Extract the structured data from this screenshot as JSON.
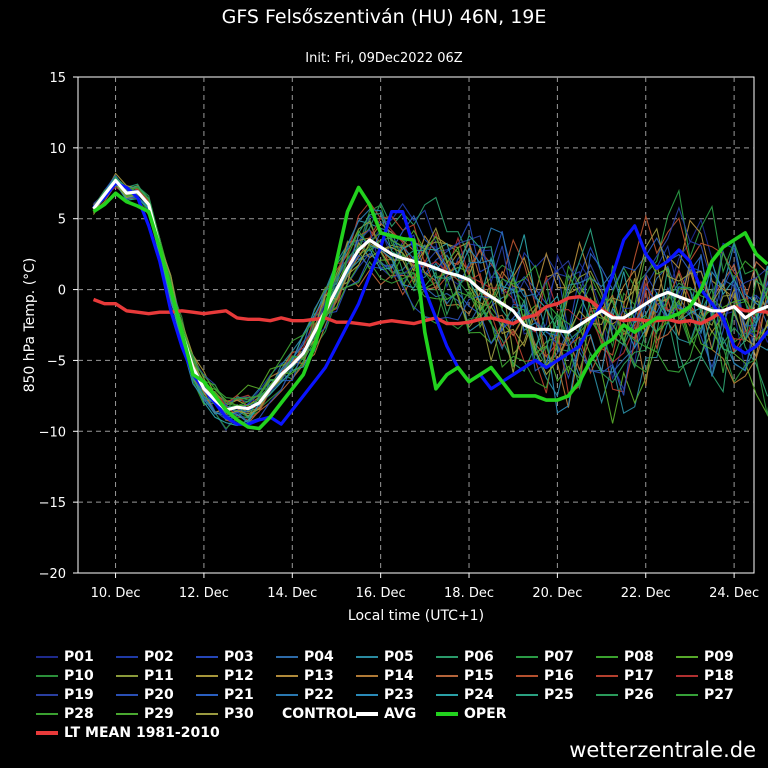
{
  "chart_data": {
    "type": "line",
    "title": "GFS Felsőszentiván (HU) 46N, 19E",
    "subtitle": "Init: Fri, 09Dec2022 06Z",
    "xlabel": "Local time (UTC+1)",
    "ylabel": "850 hPa Temp. (°C)",
    "ylim": [
      -20,
      15
    ],
    "yticks": [
      15,
      10,
      5,
      0,
      -5,
      -10,
      -15,
      -20
    ],
    "ytick_labels": [
      "15",
      "10",
      "5",
      "0",
      "−5",
      "−10",
      "−15",
      "−20"
    ],
    "xlim": [
      -0.35,
      14.95
    ],
    "xticks": [
      0.5,
      2.5,
      4.5,
      6.5,
      8.5,
      10.5,
      12.5,
      14.5
    ],
    "xtick_labels": [
      "10. Dec",
      "12. Dec",
      "14. Dec",
      "16. Dec",
      "18. Dec",
      "20. Dec",
      "22. Dec",
      "24. Dec"
    ],
    "grid": true,
    "legend_placement": "bottom",
    "step_days": 0.25,
    "key_series": [
      {
        "name": "CONTROL",
        "color": "#0a14ff",
        "width": 3.2,
        "values": [
          5.8,
          6.5,
          7.5,
          7.2,
          6.5,
          4.5,
          2,
          -1.5,
          -4,
          -6,
          -7,
          -8,
          -9,
          -9.5,
          -9.5,
          -9.2,
          -9,
          -9.5,
          -8.5,
          -7.5,
          -6.5,
          -5.5,
          -4,
          -2.5,
          -1,
          1,
          3,
          5.5,
          5.5,
          3,
          0,
          -2,
          -4,
          -5.5,
          -6.5,
          -6,
          -7,
          -6.5,
          -6,
          -5.5,
          -5,
          -5.5,
          -5,
          -4.5,
          -4,
          -2.5,
          -1,
          1,
          3.5,
          4.5,
          2.5,
          1.5,
          2,
          2.8,
          2,
          0,
          -1,
          -2,
          -4,
          -4.5,
          -4,
          -3,
          -2.5,
          -2
        ]
      },
      {
        "name": "AVG",
        "color": "#ffffff",
        "width": 3.2,
        "values": [
          5.7,
          6.7,
          7.7,
          6.8,
          6.9,
          6,
          3,
          0,
          -3,
          -5.5,
          -7,
          -7.8,
          -8.5,
          -8.3,
          -8.4,
          -8,
          -7,
          -6,
          -5.3,
          -4.5,
          -3,
          -1.5,
          0,
          1.5,
          2.8,
          3.5,
          3,
          2.5,
          2.2,
          2,
          1.8,
          1.5,
          1.2,
          1,
          0.7,
          0,
          -0.5,
          -1,
          -1.5,
          -2.5,
          -2.8,
          -2.8,
          -2.9,
          -3,
          -2.5,
          -2,
          -1.5,
          -2,
          -2,
          -1.5,
          -1,
          -0.5,
          -0.2,
          -0.5,
          -0.8,
          -1.2,
          -1.5,
          -1.5,
          -1.2,
          -2,
          -1.5,
          -1.2,
          -1.4,
          -1.5,
          -1
        ]
      },
      {
        "name": "OPER",
        "color": "#22d21e",
        "width": 3.6,
        "values": [
          5.5,
          6,
          6.8,
          6.2,
          5.9,
          5.5,
          3,
          0,
          -3,
          -6,
          -6.5,
          -7.5,
          -8.5,
          -9.2,
          -9.7,
          -9.8,
          -9,
          -8,
          -7,
          -6,
          -4,
          -1.5,
          2,
          5.5,
          7.2,
          6,
          4,
          3.8,
          3.6,
          3.5,
          -3,
          -7,
          -6,
          -5.5,
          -6.5,
          -6,
          -5.5,
          -6.5,
          -7.5,
          -7.5,
          -7.5,
          -7.8,
          -7.8,
          -7.5,
          -6.5,
          -5,
          -4,
          -3.5,
          -2.5,
          -3,
          -2.5,
          -2,
          -2,
          -1.7,
          -1.2,
          0,
          2,
          3,
          3.5,
          4,
          2.5,
          1.8
        ]
      },
      {
        "name": "LT MEAN 1981-2010",
        "color": "#e83a3a",
        "width": 3.4,
        "values": [
          -0.7,
          -1,
          -1,
          -1.5,
          -1.6,
          -1.7,
          -1.6,
          -1.6,
          -1.5,
          -1.6,
          -1.7,
          -1.6,
          -1.5,
          -2,
          -2.1,
          -2.1,
          -2.2,
          -2,
          -2.2,
          -2.2,
          -2.1,
          -2,
          -2.3,
          -2.3,
          -2.4,
          -2.5,
          -2.3,
          -2.2,
          -2.3,
          -2.4,
          -2.2,
          -2,
          -2.4,
          -2.4,
          -2.3,
          -2.1,
          -2,
          -2.2,
          -2.4,
          -2,
          -1.8,
          -1.2,
          -1,
          -0.6,
          -0.5,
          -0.8,
          -1.4,
          -1.9,
          -2.2,
          -2.1,
          -2.2,
          -2.2,
          -2.1,
          -2.3,
          -2.2,
          -2.4,
          -2,
          -1.5,
          -1.2,
          -1.5,
          -1.5,
          -1.6,
          -1.8,
          -1.5
        ]
      }
    ],
    "members": [
      {
        "name": "P01",
        "color": "#1e2a8c"
      },
      {
        "name": "P02",
        "color": "#1f3aa6"
      },
      {
        "name": "P03",
        "color": "#2546b8"
      },
      {
        "name": "P04",
        "color": "#2d6aa8"
      },
      {
        "name": "P05",
        "color": "#2a8aa0"
      },
      {
        "name": "P06",
        "color": "#2a9a6a"
      },
      {
        "name": "P07",
        "color": "#2a9a45"
      },
      {
        "name": "P08",
        "color": "#3aa12e"
      },
      {
        "name": "P09",
        "color": "#56a82a"
      },
      {
        "name": "P10",
        "color": "#2b8f3a"
      },
      {
        "name": "P11",
        "color": "#8a9a3a"
      },
      {
        "name": "P12",
        "color": "#a6963a"
      },
      {
        "name": "P13",
        "color": "#b08a3a"
      },
      {
        "name": "P14",
        "color": "#b07a36"
      },
      {
        "name": "P15",
        "color": "#b4643a"
      },
      {
        "name": "P16",
        "color": "#b4502e"
      },
      {
        "name": "P17",
        "color": "#b4402e"
      },
      {
        "name": "P18",
        "color": "#b03030"
      },
      {
        "name": "P19",
        "color": "#2a3fa0"
      },
      {
        "name": "P20",
        "color": "#2a4fb4"
      },
      {
        "name": "P21",
        "color": "#2a5fc0"
      },
      {
        "name": "P22",
        "color": "#2a78b0"
      },
      {
        "name": "P23",
        "color": "#2a8ab8"
      },
      {
        "name": "P24",
        "color": "#2aa0a6"
      },
      {
        "name": "P25",
        "color": "#2aa080"
      },
      {
        "name": "P26",
        "color": "#2a9a5a"
      },
      {
        "name": "P27",
        "color": "#36a038"
      },
      {
        "name": "P28",
        "color": "#3aa030"
      },
      {
        "name": "P29",
        "color": "#4aa830"
      },
      {
        "name": "P30",
        "color": "#9a9a40"
      }
    ]
  },
  "watermark": "wetterzentrale.de"
}
